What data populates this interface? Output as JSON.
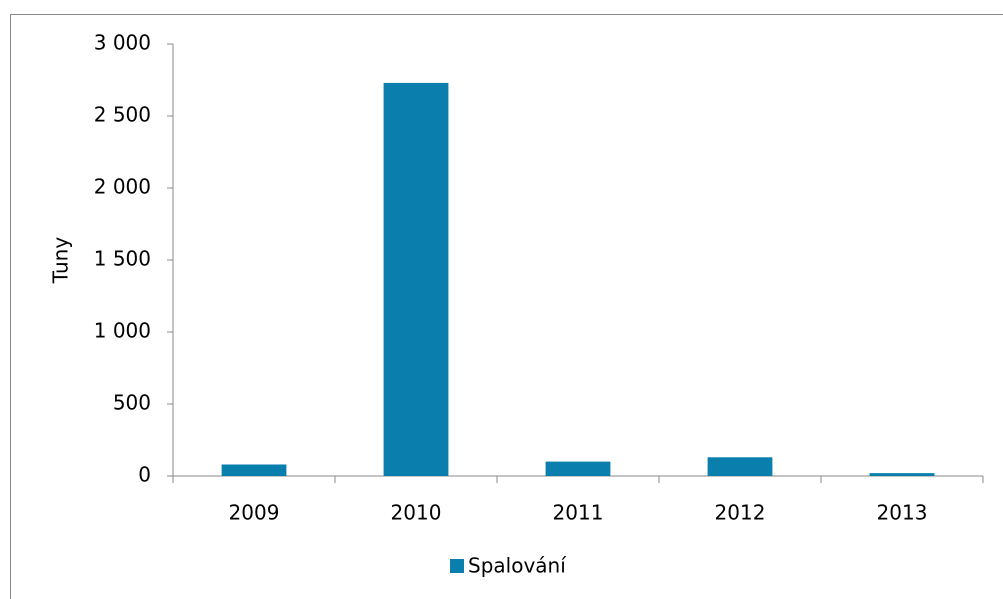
{
  "chart_data": {
    "type": "bar",
    "y_label": "Tuny",
    "categories": [
      "2009",
      "2010",
      "2011",
      "2012",
      "2013"
    ],
    "series": [
      {
        "name": "Spalování",
        "color": "#0a7fae",
        "values": [
          80,
          2730,
          100,
          130,
          20
        ]
      }
    ],
    "ylim": [
      0,
      3000
    ],
    "yticks": [
      0,
      500,
      {
        "value": 1000,
        "label": "1 000"
      },
      {
        "value": 1500,
        "label": "1 500"
      },
      {
        "value": 2000,
        "label": "2 000"
      },
      {
        "value": 2500,
        "label": "2 500"
      },
      {
        "value": 3000,
        "label": "3 000"
      }
    ],
    "grid": false,
    "legend": "bottom"
  }
}
